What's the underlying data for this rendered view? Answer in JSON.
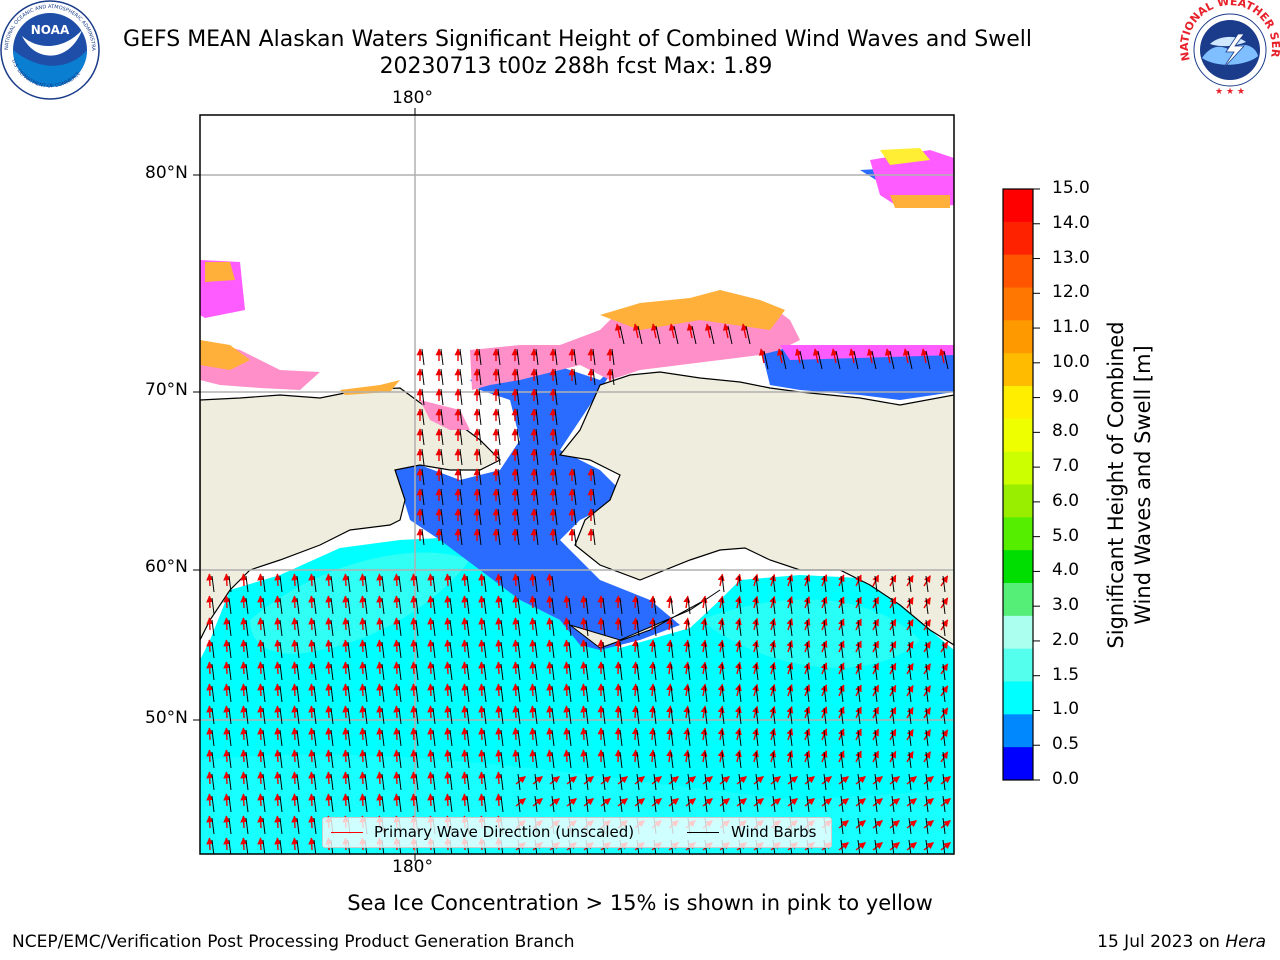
{
  "title_line1": "GEFS MEAN Alaskan Waters Significant Height of Combined Wind Waves and Swell",
  "title_line2": "20230713 t00z 288h fcst   Max: 1.89",
  "logos": {
    "left": "noaa-logo",
    "right": "nws-logo",
    "right_text": "NATIONAL WEATHER SERVICE"
  },
  "map": {
    "lat_labels": [
      "80°N",
      "70°N",
      "60°N",
      "50°N"
    ],
    "lon_label_top": "180°",
    "lon_label_bottom": "180°",
    "legend": {
      "wave_label": "Primary Wave Direction (unscaled)",
      "wind_label": "Wind Barbs",
      "wave_color": "#ff0000",
      "wind_color": "#000000"
    },
    "land_color": "#efeddd"
  },
  "colorbar": {
    "title_line1": "Significant Height of Combined",
    "title_line2": "Wind Waves and Swell [m]",
    "ticks": [
      "15.0",
      "14.0",
      "13.0",
      "12.0",
      "11.0",
      "10.0",
      "9.0",
      "8.0",
      "7.0",
      "6.0",
      "5.0",
      "4.0",
      "3.0",
      "2.0",
      "1.5",
      "1.0",
      "0.5",
      "0.0"
    ],
    "colors": [
      "#ff0000",
      "#ff2200",
      "#ff5500",
      "#ff7700",
      "#ff9900",
      "#ffbb00",
      "#ffee00",
      "#eeff00",
      "#ccff00",
      "#aaee00",
      "#66ee00",
      "#00dd00",
      "#00bb00",
      "#55ee77",
      "#aaffee",
      "#55ffee",
      "#00ffff",
      "#0088ff",
      "#0000ff"
    ]
  },
  "sea_ice_note": "Sea Ice Concentration > 15% is shown in pink to yellow",
  "footer_left": "NCEP/EMC/Verification Post Processing Product Generation Branch",
  "footer_date": "15 Jul 2023 on",
  "footer_host": "Hera"
}
